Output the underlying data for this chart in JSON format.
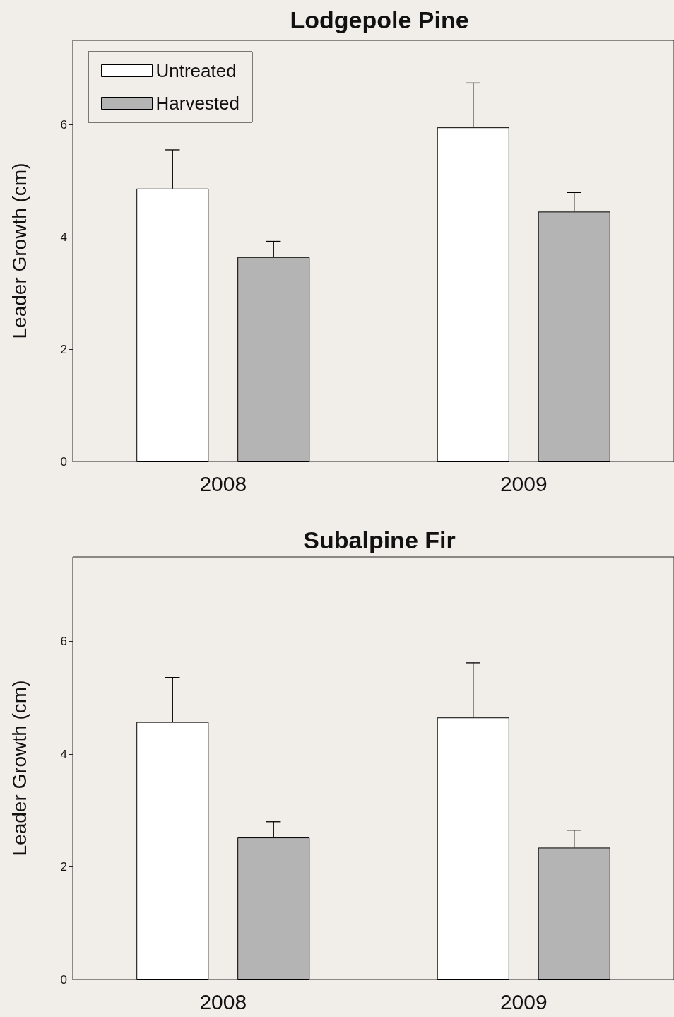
{
  "chart_data": [
    {
      "type": "bar",
      "title": "Lodgepole Pine",
      "ylabel": "Leader Growth (cm)",
      "categories": [
        "2008",
        "2009"
      ],
      "ylim": [
        0,
        7.5
      ],
      "yticks": [
        0,
        2,
        4,
        6
      ],
      "legend": "top left",
      "series": [
        {
          "name": "Untreated",
          "color": "#ffffff",
          "values": [
            4.86,
            5.95
          ],
          "errors": [
            [
              4.86,
              5.55
            ],
            [
              5.95,
              6.74
            ]
          ]
        },
        {
          "name": "Harvested",
          "color": "#b4b4b4",
          "values": [
            3.64,
            4.45
          ],
          "errors": [
            [
              3.64,
              3.92
            ],
            [
              4.45,
              4.79
            ]
          ]
        }
      ]
    },
    {
      "type": "bar",
      "title": "Subalpine Fir",
      "ylabel": "Leader Growth (cm)",
      "categories": [
        "2008",
        "2009"
      ],
      "ylim": [
        0,
        7.5
      ],
      "yticks": [
        0,
        2,
        4,
        6
      ],
      "series": [
        {
          "color": "#ffffff",
          "values": [
            4.57,
            4.65
          ],
          "errors": [
            [
              4.57,
              5.36
            ],
            [
              4.65,
              5.62
            ]
          ]
        },
        {
          "color": "#b4b4b4",
          "values": [
            2.52,
            2.34
          ],
          "errors": [
            [
              2.52,
              2.8
            ],
            [
              2.34,
              2.65
            ]
          ]
        }
      ]
    }
  ]
}
